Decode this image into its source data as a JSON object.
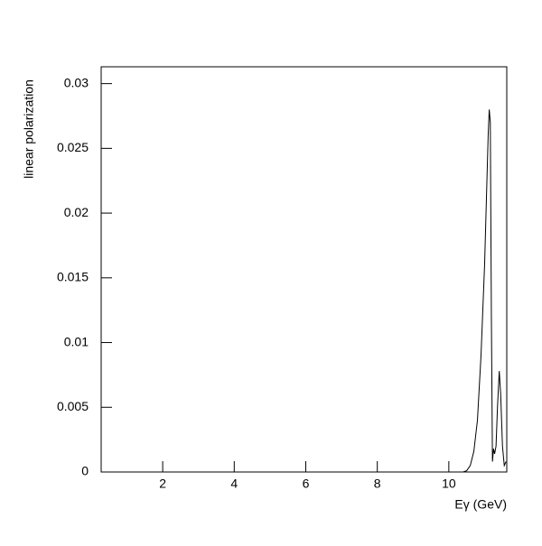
{
  "chart_data": {
    "type": "line",
    "xlabel": "Eγ (GeV)",
    "ylabel": "linear polarization",
    "x": [
      0.3,
      10.4,
      10.5,
      10.6,
      10.7,
      10.8,
      10.9,
      11.0,
      11.05,
      11.1,
      11.13,
      11.16,
      11.19,
      11.22,
      11.25,
      11.28,
      11.32,
      11.36,
      11.41,
      11.45,
      11.5,
      11.55,
      11.6
    ],
    "series": [
      {
        "color": "#000000",
        "values": [
          0,
          0,
          0.0001,
          0.0005,
          0.0016,
          0.004,
          0.009,
          0.016,
          0.021,
          0.026,
          0.028,
          0.027,
          0.012,
          0.0008,
          0.0018,
          0.0014,
          0.002,
          0.005,
          0.0078,
          0.006,
          0.002,
          0.0005,
          0.0008
        ]
      }
    ],
    "xlim": [
      0.28,
      11.62
    ],
    "xticks": [
      2,
      4,
      6,
      8,
      10
    ],
    "ylim": [
      0,
      0.0313
    ],
    "yticks": [
      0,
      0.005,
      0.01,
      0.015,
      0.02,
      0.025,
      0.03
    ]
  }
}
